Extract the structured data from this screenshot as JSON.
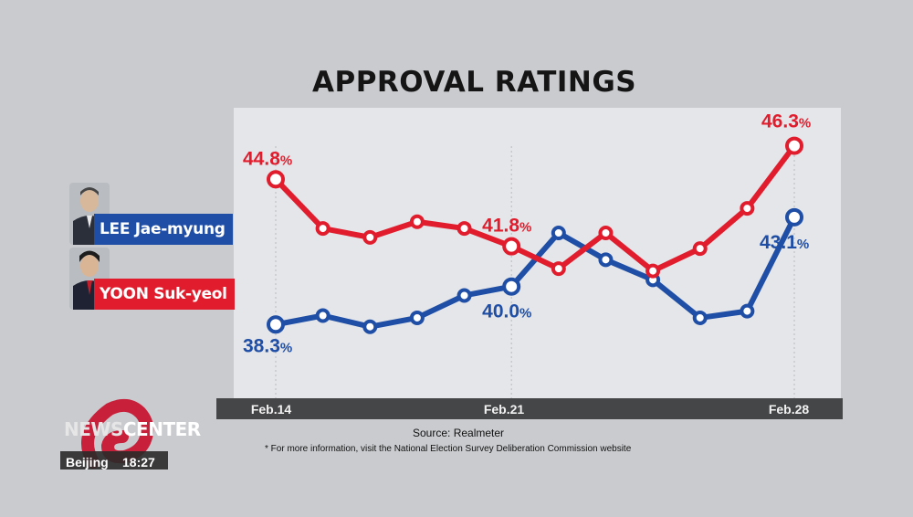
{
  "title": "APPROVAL RATINGS",
  "source": "Source: Realmeter",
  "footnote": "* For more information, visit the National Election Survey Deliberation Commission website",
  "legend": [
    {
      "name": "LEE Jae-myung",
      "color": "#1f4ea6"
    },
    {
      "name": "YOON Suk-yeol",
      "color": "#e11d2d"
    }
  ],
  "broadcast": {
    "logo_news": "NEWS",
    "logo_center": "CENTER",
    "city": "Beijing",
    "time": "18:27"
  },
  "chart_data": {
    "type": "line",
    "title": "APPROVAL RATINGS",
    "x": [
      "Feb.14",
      "",
      "",
      "",
      "",
      "Feb.21",
      "",
      "",
      "",
      "",
      "",
      "Feb.28"
    ],
    "xtick_labels": [
      "Feb.14",
      "Feb.21",
      "Feb.28"
    ],
    "ylim": [
      35,
      48
    ],
    "grid": false,
    "series": [
      {
        "name": "LEE Jae-myung",
        "color": "#1f4ea6",
        "values": [
          38.3,
          38.7,
          38.2,
          38.6,
          39.6,
          40.0,
          42.4,
          41.2,
          40.3,
          38.6,
          38.9,
          43.1
        ],
        "labels": {
          "0": "38.3",
          "5": "40.0",
          "11": "43.1"
        }
      },
      {
        "name": "YOON Suk-yeol",
        "color": "#e11d2d",
        "values": [
          44.8,
          42.6,
          42.2,
          42.9,
          42.6,
          41.8,
          40.8,
          42.4,
          40.7,
          41.7,
          43.5,
          46.3
        ],
        "labels": {
          "0": "44.8",
          "5": "41.8",
          "11": "46.3"
        }
      }
    ],
    "label_suffix": "%"
  }
}
